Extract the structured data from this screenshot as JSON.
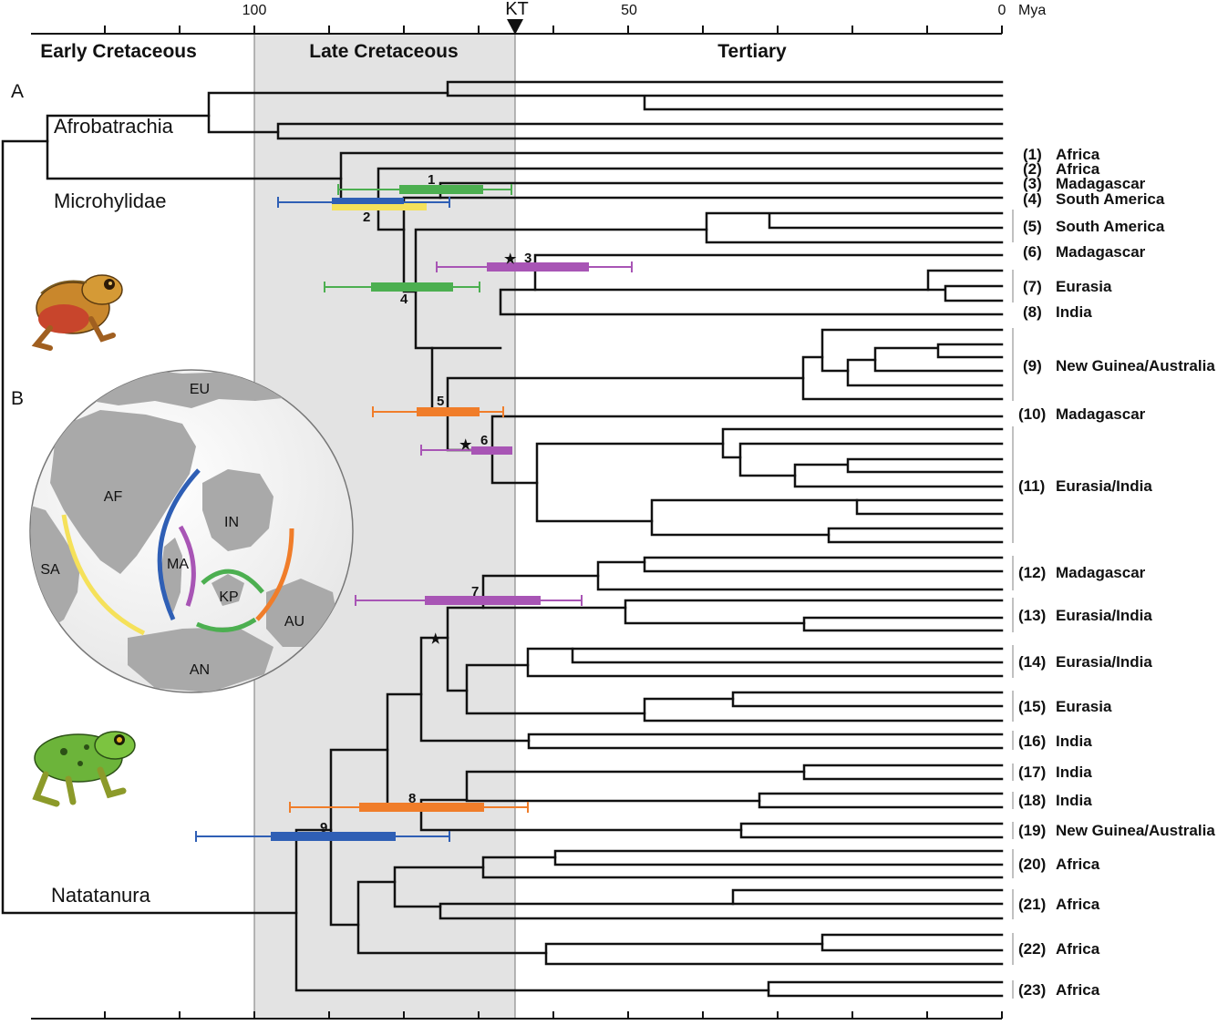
{
  "axis": {
    "ticks": [
      {
        "mya": 100,
        "label": "100"
      },
      {
        "mya": 50,
        "label": "50"
      },
      {
        "mya": 0,
        "label": "0"
      }
    ],
    "unit": "Mya",
    "kt_label": "KT",
    "kt_mya": 65.5
  },
  "periods": [
    {
      "name": "Early Cretaceous"
    },
    {
      "name": "Late Cretaceous"
    },
    {
      "name": "Tertiary"
    }
  ],
  "panels": {
    "a": "A",
    "b": "B"
  },
  "groups": {
    "afrobatrachia": "Afrobatrachia",
    "microhylidae": "Microhylidae",
    "natatanura": "Natatanura"
  },
  "clades": [
    {
      "num": "(1)",
      "region": "Africa"
    },
    {
      "num": "(2)",
      "region": "Africa"
    },
    {
      "num": "(3)",
      "region": "Madagascar"
    },
    {
      "num": "(4)",
      "region": "South America"
    },
    {
      "num": "(5)",
      "region": "South America"
    },
    {
      "num": "(6)",
      "region": "Madagascar"
    },
    {
      "num": "(7)",
      "region": "Eurasia"
    },
    {
      "num": "(8)",
      "region": "India"
    },
    {
      "num": "(9)",
      "region": "New Guinea/Australia"
    },
    {
      "num": "(10)",
      "region": "Madagascar"
    },
    {
      "num": "(11)",
      "region": "Eurasia/India"
    },
    {
      "num": "(12)",
      "region": "Madagascar"
    },
    {
      "num": "(13)",
      "region": "Eurasia/India"
    },
    {
      "num": "(14)",
      "region": "Eurasia/India"
    },
    {
      "num": "(15)",
      "region": "Eurasia"
    },
    {
      "num": "(16)",
      "region": "India"
    },
    {
      "num": "(17)",
      "region": "India"
    },
    {
      "num": "(18)",
      "region": "India"
    },
    {
      "num": "(19)",
      "region": "New Guinea/Australia"
    },
    {
      "num": "(20)",
      "region": "Africa"
    },
    {
      "num": "(21)",
      "region": "Africa"
    },
    {
      "num": "(22)",
      "region": "Africa"
    },
    {
      "num": "(23)",
      "region": "Africa"
    }
  ],
  "node_estimates": [
    {
      "label": "1",
      "color": "#4caf50"
    },
    {
      "label": "2",
      "color": "#f5e15a"
    },
    {
      "label": "3",
      "color": "#a855b5"
    },
    {
      "label": "4",
      "color": "#4caf50"
    },
    {
      "label": "5",
      "color": "#f07d2a"
    },
    {
      "label": "6",
      "color": "#a855b5"
    },
    {
      "label": "7",
      "color": "#a855b5"
    },
    {
      "label": "8",
      "color": "#f07d2a"
    },
    {
      "label": "9",
      "color": "#2f5fb5"
    }
  ],
  "map": {
    "labels": [
      "EU",
      "AF",
      "IN",
      "SA",
      "MA",
      "KP",
      "AU",
      "AN"
    ],
    "arc_colors": {
      "yellow": "#f5e15a",
      "blue": "#2f5fb5",
      "purple": "#a855b5",
      "green": "#4caf50",
      "orange": "#f07d2a"
    }
  },
  "star_symbol": "★"
}
